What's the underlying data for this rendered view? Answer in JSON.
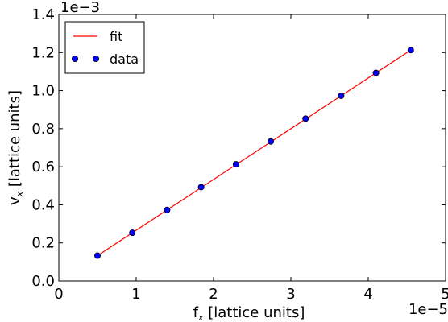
{
  "chart_data": {
    "type": "line",
    "x_offset": "1e−5",
    "y_offset": "1e−3",
    "xlabel": {
      "prefix": "f",
      "subscript": "x",
      "suffix": " [lattice units]"
    },
    "ylabel": {
      "prefix": "v",
      "subscript": "x",
      "suffix": " [lattice units]"
    },
    "xlim": [
      0,
      5
    ],
    "ylim": [
      0,
      1.4
    ],
    "x_ticks": [
      "0",
      "1",
      "2",
      "3",
      "4",
      "5"
    ],
    "y_ticks": [
      "0.0",
      "0.2",
      "0.4",
      "0.6",
      "0.8",
      "1.0",
      "1.2",
      "1.4"
    ],
    "series": [
      {
        "name": "fit",
        "kind": "line",
        "color": "#ff0000",
        "x": [
          0.5,
          4.55
        ],
        "y": [
          0.133,
          1.213
        ]
      },
      {
        "name": "data",
        "kind": "scatter",
        "color": "#0000ff",
        "x": [
          0.5,
          0.95,
          1.4,
          1.84,
          2.29,
          2.74,
          3.19,
          3.65,
          4.1,
          4.55
        ],
        "y": [
          0.133,
          0.253,
          0.373,
          0.493,
          0.613,
          0.733,
          0.853,
          0.973,
          1.093,
          1.213
        ]
      }
    ],
    "grid": false,
    "legend_position": "upper-left"
  }
}
